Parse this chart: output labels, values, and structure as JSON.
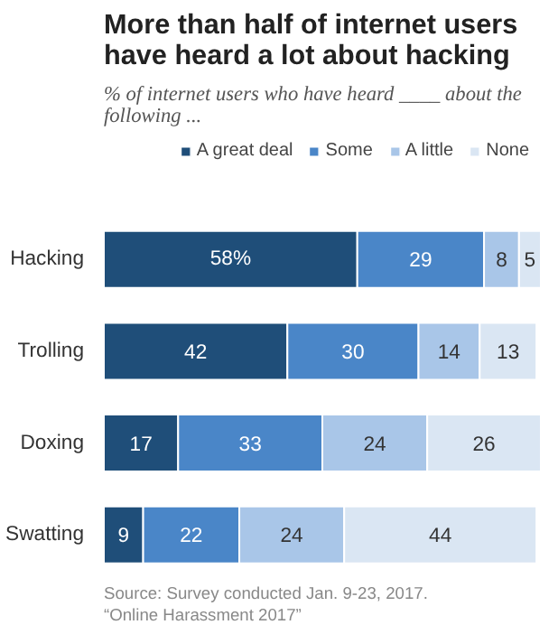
{
  "chart_data": {
    "type": "bar",
    "orientation": "horizontal",
    "stacked": true,
    "title": "More than half of internet users have heard a lot about hacking",
    "subtitle": "% of internet users who have heard ____ about the following ...",
    "categories": [
      "Hacking",
      "Trolling",
      "Doxing",
      "Swatting"
    ],
    "series": [
      {
        "name": "A great deal",
        "color": "#1f4e79",
        "values": [
          58,
          42,
          17,
          9
        ],
        "value_labels": [
          "58%",
          "42",
          "17",
          "9"
        ]
      },
      {
        "name": "Some",
        "color": "#4a86c8",
        "values": [
          29,
          30,
          33,
          22
        ],
        "value_labels": [
          "29",
          "30",
          "33",
          "22"
        ]
      },
      {
        "name": "A little",
        "color": "#a9c6e8",
        "values": [
          8,
          14,
          24,
          24
        ],
        "value_labels": [
          "8",
          "14",
          "24",
          "24"
        ]
      },
      {
        "name": "None",
        "color": "#dae6f3",
        "values": [
          5,
          13,
          26,
          44
        ],
        "value_labels": [
          "5",
          "13",
          "26",
          "44"
        ]
      }
    ],
    "legend": "top",
    "tick_labels": "y",
    "grid": false,
    "annotations": [
      "Source: Survey conducted Jan. 9-23, 2017.",
      "“Online Harassment 2017”"
    ]
  }
}
